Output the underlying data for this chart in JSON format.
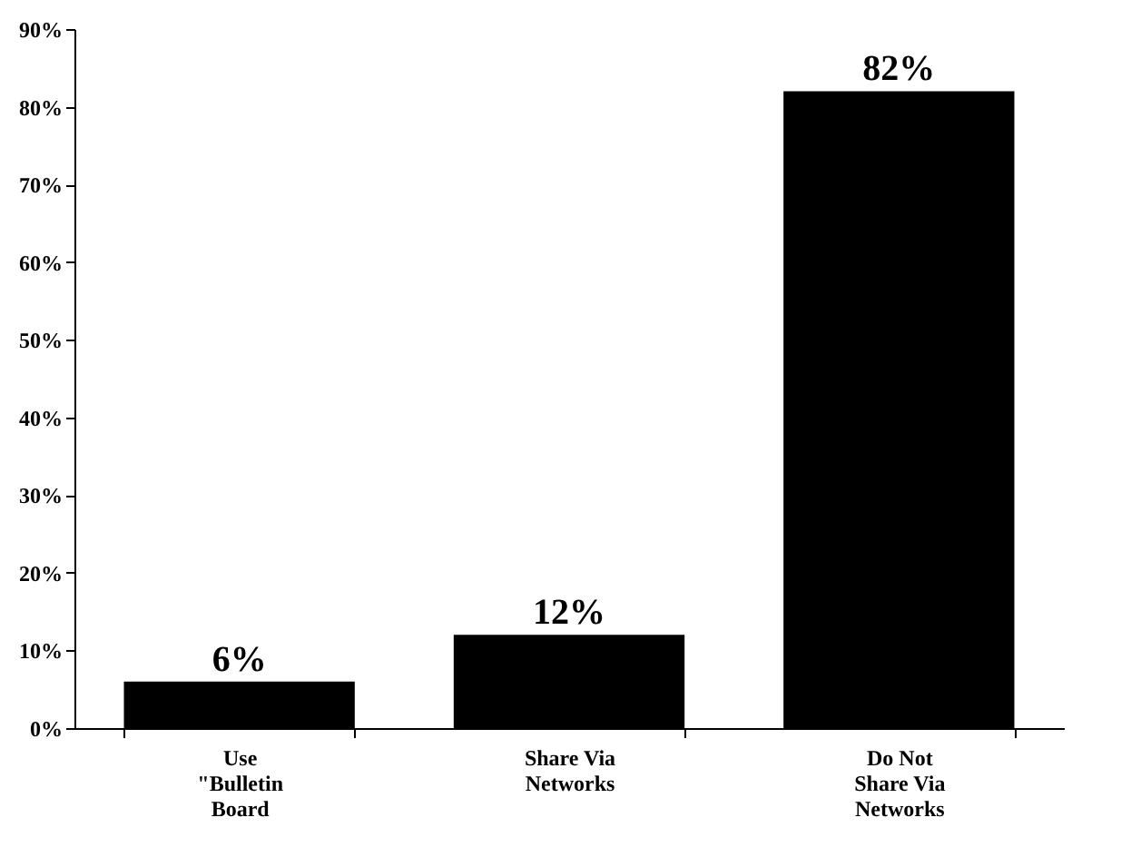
{
  "chart_data": {
    "type": "bar",
    "categories": [
      "Use \"Bulletin Board",
      "Share Via Networks",
      "Do Not Share Via Networks"
    ],
    "values": [
      6,
      12,
      82
    ],
    "value_labels": [
      "6%",
      "12%",
      "82%"
    ],
    "color": "#000000",
    "ylim": [
      0,
      90
    ],
    "yticks": [
      {
        "value": 0,
        "label": "0%"
      },
      {
        "value": 10,
        "label": "10%"
      },
      {
        "value": 20,
        "label": "20%"
      },
      {
        "value": 30,
        "label": "30%"
      },
      {
        "value": 40,
        "label": "40%"
      },
      {
        "value": 50,
        "label": "50%"
      },
      {
        "value": 60,
        "label": "60%"
      },
      {
        "value": 70,
        "label": "70%"
      },
      {
        "value": 80,
        "label": "80%"
      },
      {
        "value": 90,
        "label": "90%"
      }
    ],
    "grid": false
  }
}
